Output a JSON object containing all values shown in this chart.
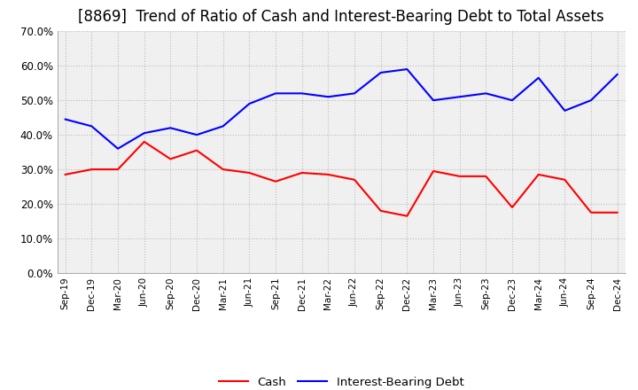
{
  "title": "[8869]  Trend of Ratio of Cash and Interest-Bearing Debt to Total Assets",
  "labels": [
    "Sep-19",
    "Dec-19",
    "Mar-20",
    "Jun-20",
    "Sep-20",
    "Dec-20",
    "Mar-21",
    "Jun-21",
    "Sep-21",
    "Dec-21",
    "Mar-22",
    "Jun-22",
    "Sep-22",
    "Dec-22",
    "Mar-23",
    "Jun-23",
    "Sep-23",
    "Dec-23",
    "Mar-24",
    "Jun-24",
    "Sep-24",
    "Dec-24"
  ],
  "cash": [
    0.285,
    0.3,
    0.3,
    0.38,
    0.33,
    0.355,
    0.3,
    0.29,
    0.265,
    0.29,
    0.285,
    0.27,
    0.18,
    0.165,
    0.295,
    0.28,
    0.28,
    0.19,
    0.285,
    0.27,
    0.175,
    0.175
  ],
  "debt": [
    0.445,
    0.425,
    0.36,
    0.405,
    0.42,
    0.4,
    0.425,
    0.49,
    0.52,
    0.52,
    0.51,
    0.52,
    0.58,
    0.59,
    0.5,
    0.51,
    0.52,
    0.5,
    0.565,
    0.47,
    0.5,
    0.575
  ],
  "cash_color": "#FF0000",
  "debt_color": "#0000FF",
  "background_color": "#FFFFFF",
  "plot_bg_color": "#F0F0F0",
  "grid_color": "#BBBBBB",
  "ylim": [
    0.0,
    0.7
  ],
  "yticks": [
    0.0,
    0.1,
    0.2,
    0.3,
    0.4,
    0.5,
    0.6,
    0.7
  ],
  "legend_cash": "Cash",
  "legend_debt": "Interest-Bearing Debt",
  "title_fontsize": 12
}
